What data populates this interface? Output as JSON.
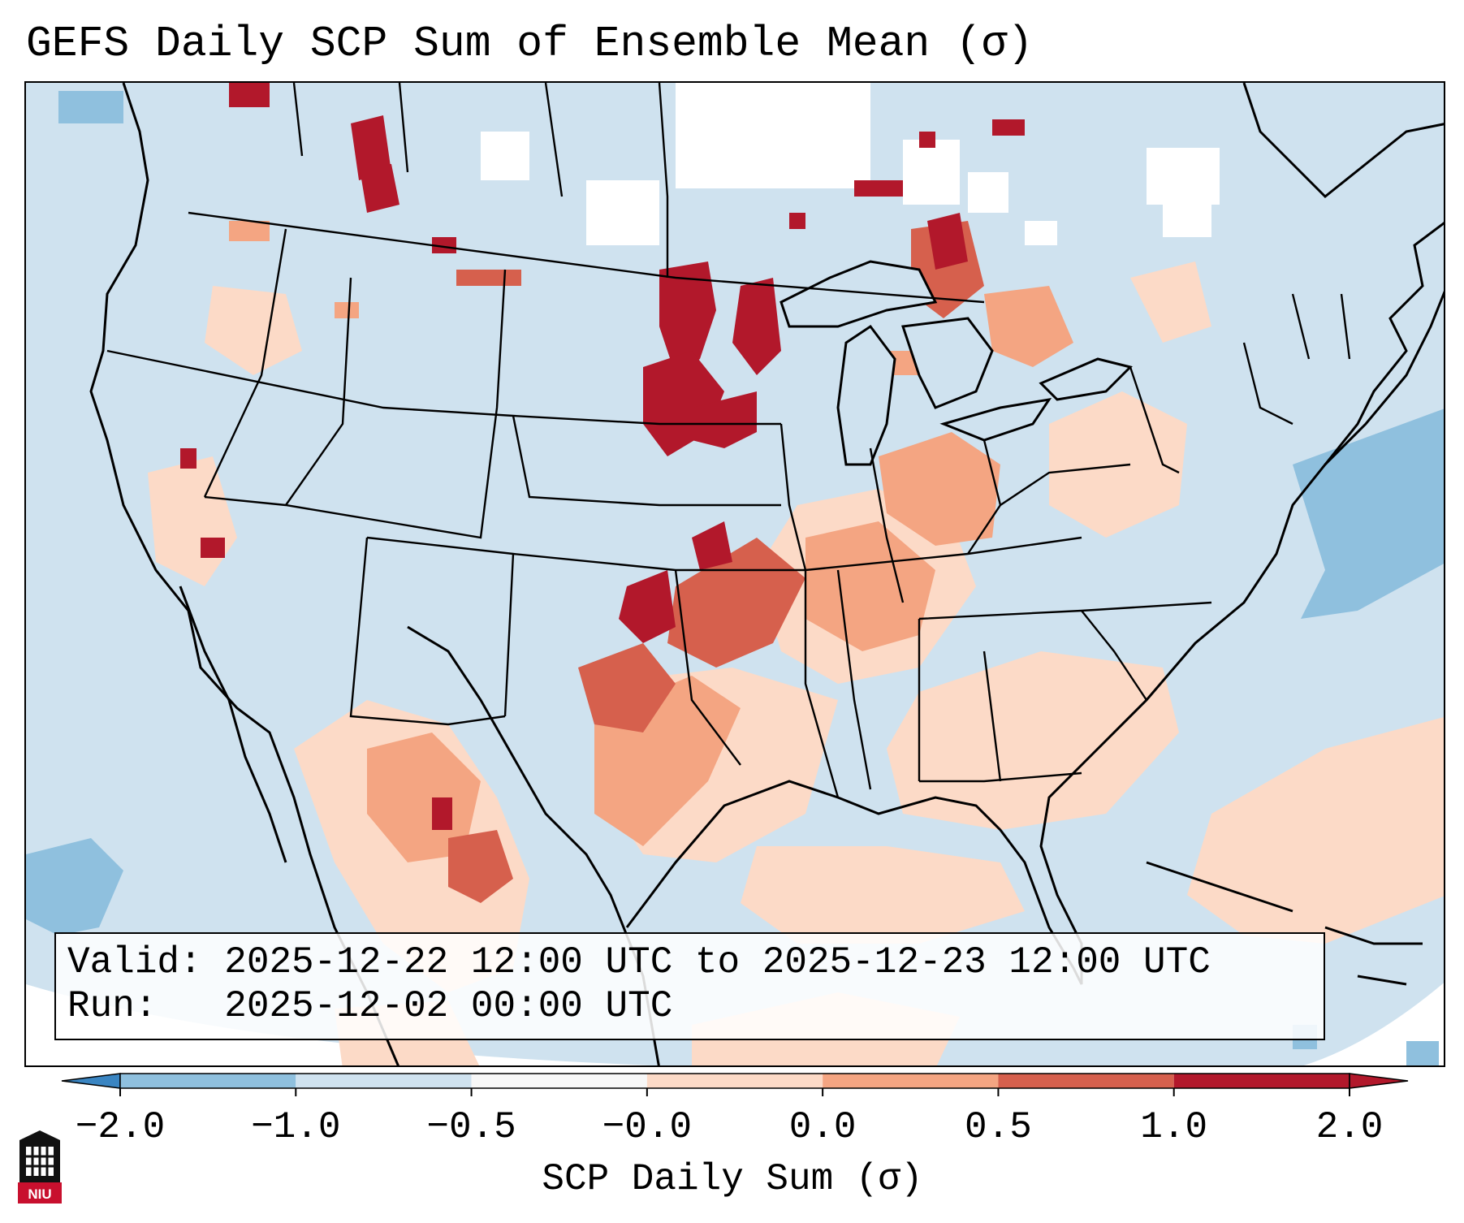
{
  "title": "GEFS Daily SCP Sum of Ensemble Mean (σ)",
  "info": {
    "valid_line": "Valid: 2025-12-22 12:00 UTC to 2025-12-23 12:00 UTC",
    "run_line": "Run:   2025-12-02 00:00 UTC"
  },
  "colorbar": {
    "label": "SCP Daily Sum (σ)",
    "ticks": [
      "−2.0",
      "−1.0",
      "−0.5",
      "−0.0",
      "0.0",
      "0.5",
      "1.0",
      "2.0"
    ],
    "colors": [
      "#3a85c2",
      "#8fc0de",
      "#cfe2ef",
      "#f7f7f7",
      "#fcdac7",
      "#f4a582",
      "#d6604d",
      "#b2182b"
    ]
  },
  "logo": {
    "text": "NIU",
    "icon": "niu-university-logo-icon"
  },
  "map": {
    "region": "Continental United States and surrounding areas",
    "background_color": "#cfe2ef"
  }
}
